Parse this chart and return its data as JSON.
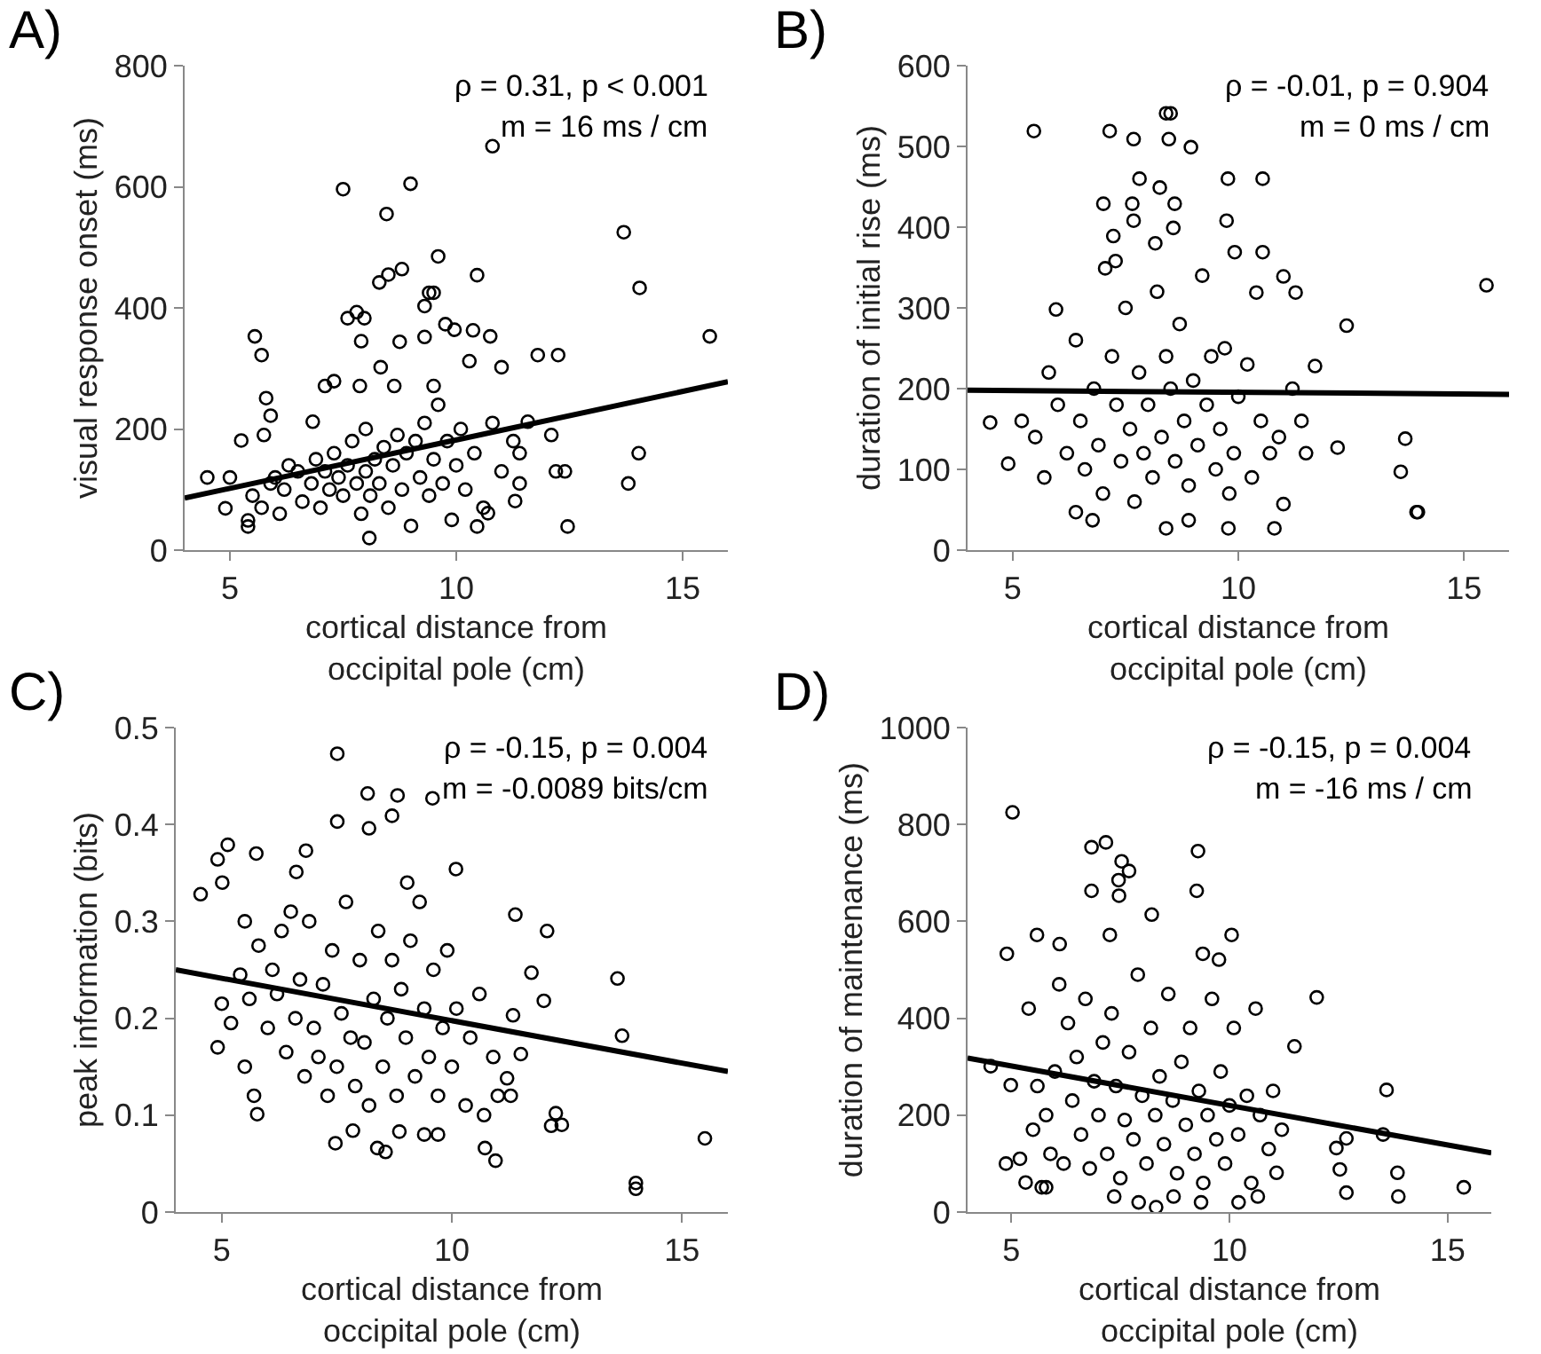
{
  "chart_data": [
    {
      "type": "scatter",
      "title": "A)",
      "xlabel": "cortical distance from\noccipital pole (cm)",
      "ylabel": "visual response onset (ms)",
      "xlim": [
        4,
        16
      ],
      "xticks": [
        5,
        10,
        15
      ],
      "ylim": [
        0,
        800
      ],
      "yticks": [
        0,
        200,
        400,
        600,
        800
      ],
      "annotations": [
        "ρ = 0.31, p < 0.001",
        "m = 16 ms / cm"
      ],
      "series": [
        {
          "marker": "circle",
          "color": "#000000",
          "x": [
            4.5,
            5.55,
            5.7,
            5.8,
            5.75,
            5.25,
            5.9,
            7.5,
            8.99,
            8.46,
            8.3,
            8.5,
            8.8,
            9.6,
            9.3,
            9.4,
            9.5,
            10.46,
            10.8,
            7.6,
            7.8,
            7.97,
            7.9,
            8.75,
            9.3,
            9.76,
            9.96,
            10.37,
            10.75,
            10.29,
            11.0,
            8.33,
            11.8,
            12.25,
            13.7,
            14.05,
            15.6,
            12.1,
            12.2,
            12.4,
            12.46,
            13.8,
            14.03,
            8.08,
            7.1,
            7.3,
            6.83,
            7.87,
            8.63,
            9.5,
            11.58,
            11.26,
            11.4,
            11.4,
            11.3,
            10.46,
            10.7,
            4.9,
            5.0,
            5.4,
            5.4,
            6.0,
            6.2,
            6.3,
            6.5,
            6.6,
            6.8,
            6.9,
            7.0,
            7.1,
            7.2,
            7.3,
            7.4,
            7.5,
            7.6,
            7.7,
            7.8,
            7.9,
            8.0,
            8.0,
            8.1,
            8.2,
            8.3,
            8.4,
            8.5,
            8.6,
            8.7,
            8.8,
            8.9,
            9.0,
            9.1,
            9.2,
            9.3,
            9.4,
            9.5,
            9.6,
            9.7,
            9.8,
            9.9,
            10.0,
            10.1,
            10.2,
            10.4,
            10.6,
            10.8,
            11.0,
            5.5,
            5.7,
            5.9,
            6.1
          ],
          "values": [
            120,
            353,
            322,
            251,
            190,
            181,
            222,
            596,
            605,
            555,
            442,
            455,
            464,
            485,
            403,
            425,
            425,
            454,
            667,
            383,
            393,
            383,
            345,
            344,
            352,
            373,
            364,
            363,
            353,
            312,
            302,
            302,
            322,
            322,
            525,
            433,
            353,
            190,
            130,
            130,
            39,
            110,
            160,
            20,
            271,
            279,
            212,
            271,
            271,
            271,
            212,
            180,
            160,
            110,
            81,
            39,
            61,
            69,
            120,
            49,
            39,
            120,
            100,
            140,
            130,
            80,
            110,
            150,
            70,
            130,
            100,
            160,
            120,
            90,
            140,
            180,
            110,
            60,
            130,
            200,
            90,
            150,
            110,
            170,
            70,
            140,
            190,
            100,
            160,
            40,
            180,
            120,
            210,
            90,
            150,
            240,
            110,
            180,
            50,
            140,
            200,
            100,
            160,
            70,
            210,
            130,
            90,
            70,
            110,
            60
          ]
        },
        {
          "type": "line",
          "color": "#000000",
          "x": [
            4,
            16
          ],
          "values": [
            86,
            278
          ]
        }
      ]
    },
    {
      "type": "scatter",
      "title": "B)",
      "xlabel": "cortical distance from\noccipital pole (cm)",
      "ylabel": "duration of initial rise (ms)",
      "xlim": [
        4,
        16
      ],
      "xticks": [
        5,
        10,
        15
      ],
      "ylim": [
        0,
        600
      ],
      "yticks": [
        0,
        100,
        200,
        300,
        400,
        500,
        600
      ],
      "annotations": [
        "ρ = -0.01, p = 0.904",
        "m = 0 ms / cm"
      ],
      "series": [
        {
          "marker": "circle",
          "color": "#000000",
          "x": [
            5.47,
            7.15,
            7.68,
            8.46,
            8.4,
            8.5,
            8.95,
            7.81,
            8.26,
            7.01,
            7.65,
            8.59,
            9.77,
            10.54,
            7.68,
            9.74,
            8.56,
            7.23,
            8.16,
            7.28,
            7.05,
            9.92,
            10.54,
            11.0,
            11.27,
            10.4,
            5.96,
            15.5,
            12.4,
            11.7,
            13.7,
            13.6,
            13.95,
            13.98,
            12.2,
            4.5,
            4.9,
            6.4,
            6.77,
            8.4,
            9.78,
            10.8,
            8.9,
            11.0,
            5.2,
            5.5,
            5.7,
            5.8,
            6.0,
            6.2,
            6.4,
            6.5,
            6.6,
            6.8,
            6.9,
            7.0,
            7.2,
            7.3,
            7.4,
            7.5,
            7.6,
            7.7,
            7.8,
            7.9,
            8.0,
            8.1,
            8.2,
            8.3,
            8.4,
            8.5,
            8.6,
            8.7,
            8.8,
            8.9,
            9.0,
            9.1,
            9.2,
            9.3,
            9.4,
            9.5,
            9.6,
            9.7,
            9.8,
            9.9,
            10.0,
            10.2,
            10.3,
            10.5,
            10.7,
            10.9,
            11.2,
            11.4,
            11.5
          ],
          "values": [
            519,
            519,
            509,
            509,
            541,
            541,
            499,
            460,
            449,
            429,
            429,
            429,
            460,
            460,
            408,
            408,
            399,
            389,
            380,
            358,
            349,
            369,
            369,
            339,
            319,
            319,
            298,
            328,
            278,
            228,
            138,
            97,
            47,
            47,
            127,
            158,
            107,
            47,
            37,
            27,
            27,
            27,
            37,
            57,
            160,
            140,
            90,
            220,
            180,
            120,
            260,
            160,
            100,
            200,
            130,
            70,
            240,
            180,
            110,
            300,
            150,
            60,
            220,
            120,
            180,
            90,
            320,
            140,
            240,
            200,
            110,
            280,
            160,
            80,
            210,
            130,
            340,
            180,
            240,
            100,
            150,
            250,
            70,
            120,
            190,
            230,
            90,
            160,
            120,
            140,
            200,
            160,
            120
          ]
        },
        {
          "type": "line",
          "color": "#000000",
          "x": [
            4,
            16
          ],
          "values": [
            198,
            193
          ]
        }
      ]
    },
    {
      "type": "scatter",
      "title": "C)",
      "xlabel": "cortical distance from\noccipital pole (cm)",
      "ylabel": "peak information (bits)",
      "xlim": [
        4,
        16
      ],
      "xticks": [
        5,
        10,
        15
      ],
      "ylim": [
        0,
        0.5
      ],
      "yticks": [
        0,
        0.1,
        0.2,
        0.3,
        0.4,
        0.5
      ],
      "annotations": [
        "ρ = -0.15, p = 0.004",
        "m = -0.0089 bits/cm"
      ],
      "series": [
        {
          "marker": "circle",
          "color": "#000000",
          "x": [
            4.54,
            4.91,
            5.01,
            5.13,
            5.75,
            4.91,
            5.77,
            7.51,
            7.51,
            8.17,
            8.82,
            9.58,
            8.2,
            8.7,
            6.83,
            6.62,
            10.09,
            9.03,
            11.38,
            12.07,
            11.73,
            13.6,
            13.7,
            15.5,
            14.0,
            14.0,
            12.26,
            12.39,
            12.16,
            12.0,
            7.47,
            8.38,
            8.56,
            10.72,
            10.95,
            9.4,
            9.7,
            8.86,
            7.85,
            11.2,
            11.28,
            11.5,
            11.33,
            5.0,
            5.2,
            5.4,
            5.5,
            5.5,
            5.6,
            5.7,
            5.8,
            6.0,
            6.1,
            6.2,
            6.3,
            6.4,
            6.5,
            6.6,
            6.7,
            6.8,
            6.9,
            7.0,
            7.1,
            7.2,
            7.3,
            7.4,
            7.5,
            7.6,
            7.7,
            7.8,
            7.9,
            8.0,
            8.1,
            8.2,
            8.3,
            8.4,
            8.5,
            8.6,
            8.7,
            8.8,
            8.9,
            9.0,
            9.1,
            9.2,
            9.3,
            9.4,
            9.5,
            9.6,
            9.7,
            9.8,
            9.9,
            10.0,
            10.1,
            10.3,
            10.4,
            10.6,
            10.7,
            10.9,
            11.0
          ],
          "values": [
            0.328,
            0.364,
            0.34,
            0.379,
            0.37,
            0.17,
            0.101,
            0.473,
            0.403,
            0.432,
            0.43,
            0.427,
            0.396,
            0.409,
            0.373,
            0.351,
            0.354,
            0.34,
            0.307,
            0.29,
            0.247,
            0.241,
            0.182,
            0.076,
            0.03,
            0.024,
            0.102,
            0.09,
            0.089,
            0.218,
            0.071,
            0.066,
            0.062,
            0.066,
            0.053,
            0.08,
            0.08,
            0.083,
            0.084,
            0.138,
            0.12,
            0.163,
            0.203,
            0.215,
            0.195,
            0.245,
            0.3,
            0.15,
            0.22,
            0.12,
            0.275,
            0.19,
            0.25,
            0.225,
            0.29,
            0.165,
            0.31,
            0.2,
            0.24,
            0.14,
            0.3,
            0.19,
            0.16,
            0.235,
            0.12,
            0.27,
            0.15,
            0.205,
            0.32,
            0.18,
            0.13,
            0.26,
            0.175,
            0.11,
            0.22,
            0.29,
            0.15,
            0.2,
            0.26,
            0.12,
            0.23,
            0.18,
            0.28,
            0.14,
            0.32,
            0.21,
            0.16,
            0.25,
            0.12,
            0.19,
            0.27,
            0.15,
            0.21,
            0.11,
            0.18,
            0.225,
            0.1,
            0.16,
            0.12
          ]
        },
        {
          "type": "line",
          "color": "#000000",
          "x": [
            4,
            16
          ],
          "values": [
            0.25,
            0.145
          ]
        }
      ]
    },
    {
      "type": "scatter",
      "title": "D)",
      "xlabel": "cortical distance from\noccipital pole (cm)",
      "ylabel": "duration of maintenance (ms)",
      "xlim": [
        4,
        16
      ],
      "xticks": [
        5,
        10,
        15
      ],
      "ylim": [
        0,
        1000
      ],
      "yticks": [
        0,
        200,
        400,
        600,
        800,
        1000
      ],
      "annotations": [
        "ρ = -0.15, p = 0.004",
        "m = -16 ms / cm"
      ],
      "series": [
        {
          "marker": "circle",
          "color": "#000000",
          "x": [
            5.03,
            4.9,
            5.59,
            6.84,
            7.17,
            7.53,
            7.7,
            7.46,
            7.47,
            6.84,
            9.28,
            9.25,
            8.22,
            7.26,
            10.05,
            9.39,
            9.76,
            6.11,
            12.0,
            11.49,
            13.6,
            13.52,
            13.85,
            13.87,
            15.37,
            12.68,
            12.53,
            12.68,
            12.45,
            4.53,
            4.99,
            4.88,
            5.33,
            5.7,
            5.8,
            7.92,
            8.32,
            9.35,
            10.21,
            10.65,
            11.08,
            8.72,
            7.36,
            5.2,
            5.4,
            5.5,
            5.6,
            5.8,
            5.9,
            6.0,
            6.1,
            6.2,
            6.3,
            6.4,
            6.5,
            6.6,
            6.7,
            6.8,
            6.9,
            7.0,
            7.1,
            7.2,
            7.3,
            7.4,
            7.5,
            7.6,
            7.7,
            7.8,
            7.9,
            8.0,
            8.1,
            8.2,
            8.3,
            8.4,
            8.5,
            8.6,
            8.7,
            8.8,
            8.9,
            9.0,
            9.1,
            9.2,
            9.3,
            9.4,
            9.5,
            9.6,
            9.7,
            9.8,
            9.9,
            10.0,
            10.1,
            10.2,
            10.4,
            10.5,
            10.6,
            10.7,
            10.9,
            11.0,
            11.2
          ],
          "values": [
            825,
            533,
            572,
            753,
            763,
            724,
            704,
            685,
            653,
            663,
            745,
            663,
            614,
            572,
            572,
            533,
            521,
            553,
            443,
            342,
            252,
            160,
            81,
            32,
            51,
            152,
            88,
            40,
            132,
            301,
            262,
            100,
            61,
            51,
            51,
            20,
            10,
            20,
            20,
            32,
            81,
            32,
            32,
            110,
            420,
            170,
            260,
            200,
            120,
            290,
            470,
            100,
            390,
            230,
            320,
            160,
            440,
            90,
            270,
            200,
            350,
            120,
            410,
            260,
            70,
            190,
            330,
            150,
            490,
            240,
            100,
            380,
            200,
            280,
            140,
            450,
            230,
            80,
            310,
            180,
            380,
            120,
            250,
            60,
            200,
            440,
            150,
            290,
            100,
            220,
            380,
            160,
            240,
            60,
            420,
            200,
            130,
            250,
            170
          ]
        },
        {
          "type": "line",
          "color": "#000000",
          "x": [
            4,
            16
          ],
          "values": [
            318,
            122
          ]
        }
      ]
    }
  ]
}
